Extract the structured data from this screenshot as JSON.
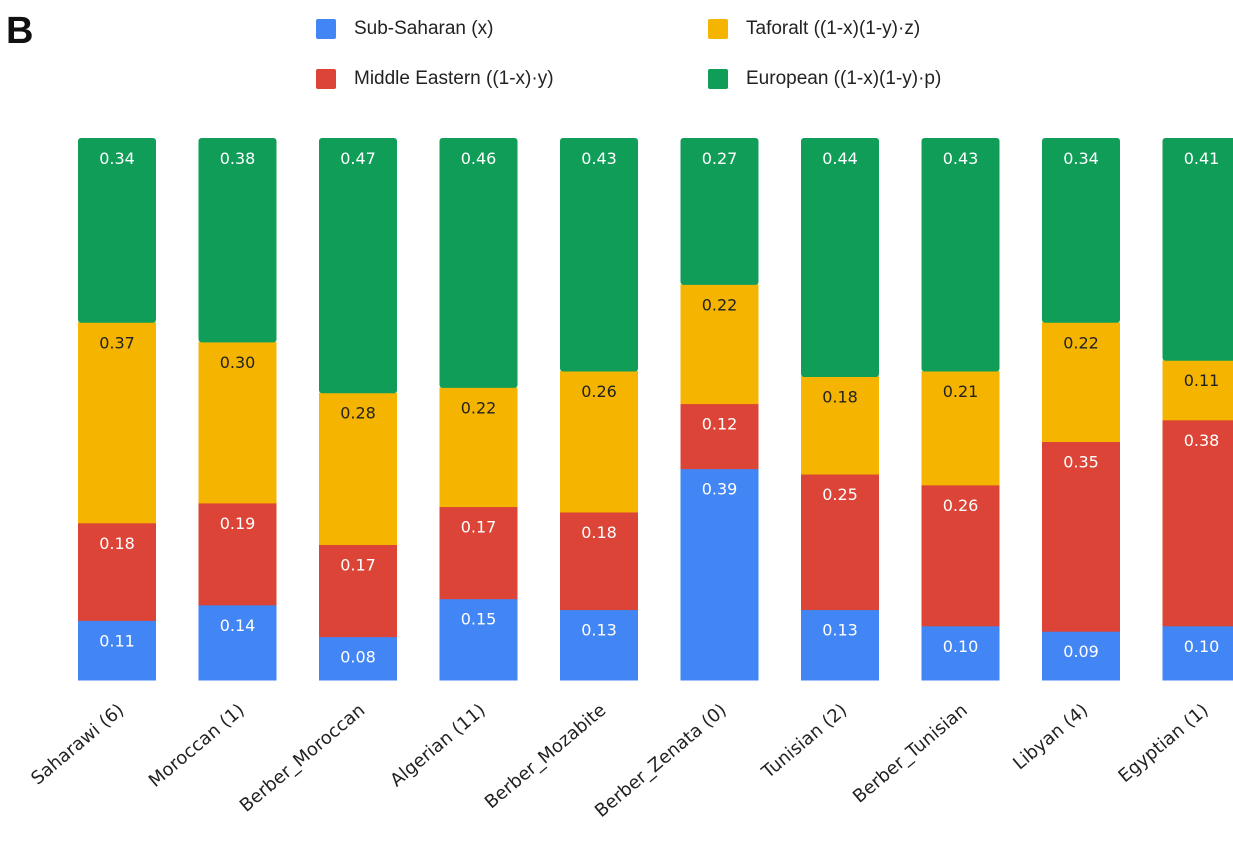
{
  "panel_label": "B",
  "legend": [
    {
      "label": "Sub-Saharan (x)",
      "color": "#4285F4"
    },
    {
      "label": "Taforalt ((1-x)(1-y)·z)",
      "color": "#F4B400"
    },
    {
      "label": "Middle Eastern ((1-x)·y)",
      "color": "#DB4437"
    },
    {
      "label": "European ((1-x)(1-y)·p)",
      "color": "#0F9D58"
    }
  ],
  "chart_data": {
    "type": "bar",
    "stacked": true,
    "title": "",
    "xlabel": "",
    "ylabel": "",
    "ylim": [
      0,
      1
    ],
    "grid": false,
    "legend_position": "top",
    "categories": [
      "Saharawi (6)",
      "Moroccan (1)",
      "Berber_Moroccan",
      "Algerian (11)",
      "Berber_Mozabite",
      "Berber_Zenata (0)",
      "Tunisian (2)",
      "Berber_Tunisian",
      "Libyan (4)",
      "Egyptian (1)"
    ],
    "series": [
      {
        "name": "Sub-Saharan (x)",
        "color": "#4285F4",
        "text_color": "#ffffff",
        "values": [
          0.11,
          0.14,
          0.08,
          0.15,
          0.13,
          0.39,
          0.13,
          0.1,
          0.09,
          0.1
        ],
        "labels": [
          "0.11",
          "0.14",
          "0.08",
          "0.15",
          "0.13",
          "0.39",
          "0.13",
          "0.10",
          "0.09",
          "0.10"
        ]
      },
      {
        "name": "Middle Eastern ((1-x)·y)",
        "color": "#DB4437",
        "text_color": "#ffffff",
        "values": [
          0.18,
          0.19,
          0.17,
          0.17,
          0.18,
          0.12,
          0.25,
          0.26,
          0.35,
          0.38
        ],
        "labels": [
          "0.18",
          "0.19",
          "0.17",
          "0.17",
          "0.18",
          "0.12",
          "0.25",
          "0.26",
          "0.35",
          "0.38"
        ]
      },
      {
        "name": "Taforalt ((1-x)(1-y)·z)",
        "color": "#F4B400",
        "text_color": "#222222",
        "values": [
          0.37,
          0.3,
          0.28,
          0.22,
          0.26,
          0.22,
          0.18,
          0.21,
          0.22,
          0.11
        ],
        "labels": [
          "0.37",
          "0.30",
          "0.28",
          "0.22",
          "0.26",
          "0.22",
          "0.18",
          "0.21",
          "0.22",
          "0.11"
        ]
      },
      {
        "name": "European ((1-x)(1-y)·p)",
        "color": "#0F9D58",
        "text_color": "#ffffff",
        "values": [
          0.34,
          0.38,
          0.47,
          0.46,
          0.43,
          0.27,
          0.44,
          0.43,
          0.34,
          0.41
        ],
        "labels": [
          "0.34",
          "0.38",
          "0.47",
          "0.46",
          "0.43",
          "0.27",
          "0.44",
          "0.43",
          "0.34",
          "0.41"
        ]
      }
    ]
  }
}
